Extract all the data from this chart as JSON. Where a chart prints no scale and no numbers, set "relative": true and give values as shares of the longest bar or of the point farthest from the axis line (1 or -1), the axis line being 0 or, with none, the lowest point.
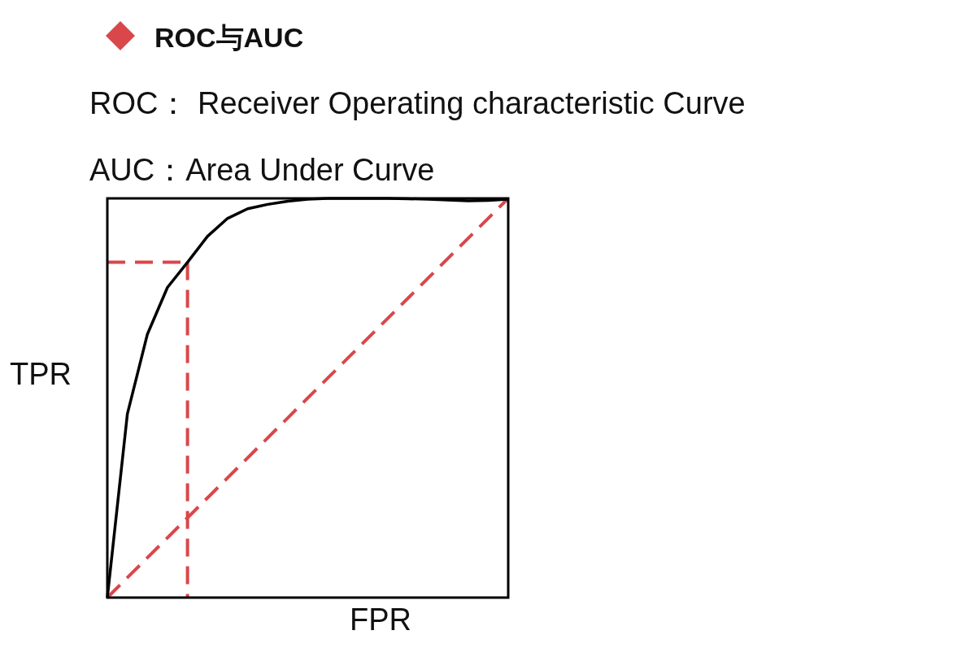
{
  "chart_data": {
    "type": "line",
    "title": "ROC与AUC",
    "subtitle": "ROC： Receiver Operating characteristic Curve",
    "annotations": [
      "AUC：Area Under Curve"
    ],
    "xlabel": "FPR",
    "ylabel": "TPR",
    "relative": true,
    "tick_labels": false,
    "grid": false,
    "categories": [
      null,
      null,
      null,
      null,
      null,
      null,
      null,
      null,
      null,
      null,
      null,
      null,
      null,
      null,
      null,
      null,
      null,
      null,
      null,
      null,
      null
    ],
    "series": [
      {
        "color": "#000000",
        "line_style": "solid",
        "values": [
          0,
          0.46,
          0.66,
          0.777,
          0.84,
          0.905,
          0.95,
          0.974,
          0.985,
          0.993,
          0.998,
          1.0,
          1.0,
          1.0,
          1.0,
          0.999,
          0.998,
          0.996,
          0.994,
          0.995,
          0.998
        ]
      },
      {
        "color": "#d9474a",
        "line_style": "dashed",
        "values": [
          0,
          0.05,
          0.1,
          0.15,
          0.2,
          0.25,
          0.3,
          0.35,
          0.4,
          0.45,
          0.5,
          0.55,
          0.6,
          0.65,
          0.7,
          0.75,
          0.8,
          0.85,
          0.9,
          0.95,
          1.0
        ]
      },
      {
        "color": "#d9474a",
        "line_style": "dashed",
        "values": [
          0.84,
          0.84,
          0.84,
          0.84,
          0.84,
          null,
          null,
          null,
          null,
          null,
          null,
          null,
          null,
          null,
          null,
          null,
          null,
          null,
          null,
          null,
          null
        ]
      }
    ]
  }
}
